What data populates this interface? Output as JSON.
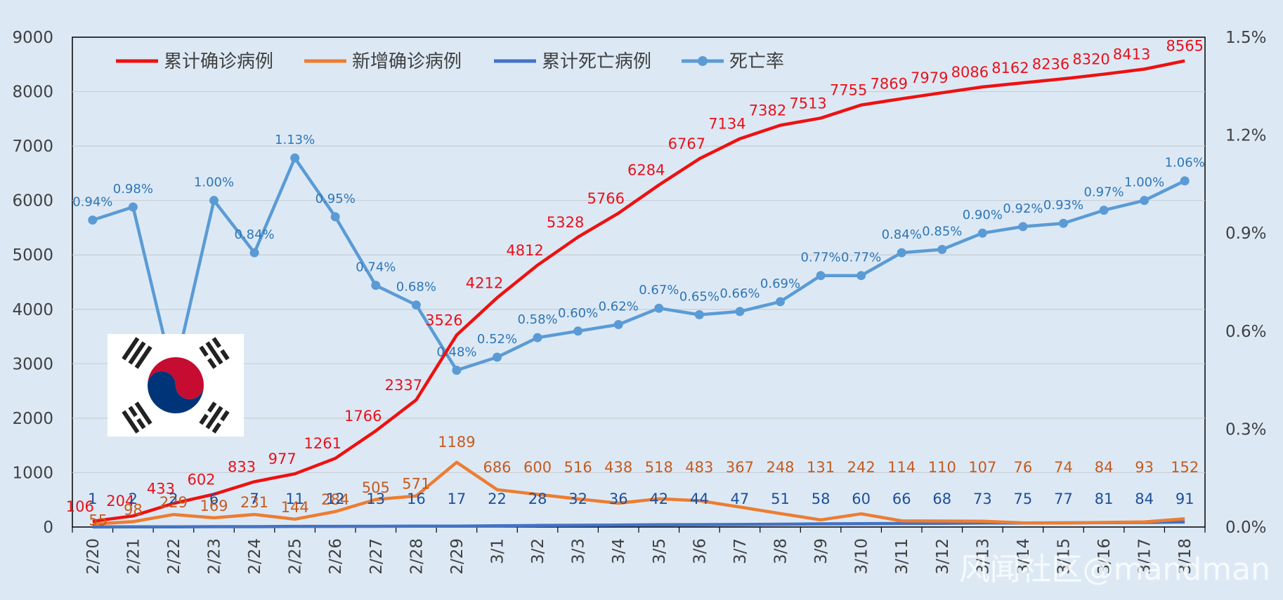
{
  "chart_data": {
    "type": "line",
    "categories": [
      "2/20",
      "2/21",
      "2/22",
      "2/23",
      "2/24",
      "2/25",
      "2/26",
      "2/27",
      "2/28",
      "2/29",
      "3/1",
      "3/2",
      "3/3",
      "3/4",
      "3/5",
      "3/6",
      "3/7",
      "3/8",
      "3/9",
      "3/10",
      "3/11",
      "3/12",
      "3/13",
      "3/14",
      "3/15",
      "3/16",
      "3/17",
      "3/18"
    ],
    "ylim": [
      0,
      9000
    ],
    "y_ticks": [
      "0",
      "1000",
      "2000",
      "3000",
      "4000",
      "5000",
      "6000",
      "7000",
      "8000",
      "9000"
    ],
    "y2lim": [
      0,
      1.5
    ],
    "y2_ticks": [
      "0.0%",
      "0.3%",
      "0.6%",
      "0.9%",
      "1.2%",
      "1.5%"
    ],
    "grid": true,
    "legend_position": "top-left",
    "series": [
      {
        "name": "累计确诊病例",
        "axis": "left",
        "color": "#ee1111",
        "values": [
          106,
          204,
          433,
          602,
          833,
          977,
          1261,
          1766,
          2337,
          3526,
          4212,
          4812,
          5328,
          5766,
          6284,
          6767,
          7134,
          7382,
          7513,
          7755,
          7869,
          7979,
          8086,
          8162,
          8236,
          8320,
          8413,
          8565
        ],
        "labels": [
          "106",
          "204",
          "433",
          "602",
          "833",
          "977",
          "1261",
          "1766",
          "2337",
          "3526",
          "4212",
          "4812",
          "5328",
          "5766",
          "6284",
          "6767",
          "7134",
          "7382",
          "7513",
          "7755",
          "7869",
          "7979",
          "8086",
          "8162",
          "8236",
          "8320",
          "8413",
          "8565"
        ]
      },
      {
        "name": "新增确诊病例",
        "axis": "left",
        "color": "#ed7d31",
        "values": [
          55,
          98,
          229,
          169,
          231,
          144,
          284,
          505,
          571,
          1189,
          686,
          600,
          516,
          438,
          518,
          483,
          367,
          248,
          131,
          242,
          114,
          110,
          107,
          76,
          74,
          84,
          93,
          152
        ],
        "labels": [
          "55",
          "98",
          "229",
          "169",
          "231",
          "144",
          "284",
          "505",
          "571",
          "1189",
          "686",
          "600",
          "516",
          "438",
          "518",
          "483",
          "367",
          "248",
          "131",
          "242",
          "114",
          "110",
          "107",
          "76",
          "74",
          "84",
          "93",
          "152"
        ]
      },
      {
        "name": "累计死亡病例",
        "axis": "left",
        "color": "#4472c4",
        "values": [
          1,
          2,
          2,
          6,
          7,
          11,
          12,
          13,
          16,
          17,
          22,
          28,
          32,
          36,
          42,
          44,
          47,
          51,
          58,
          60,
          66,
          68,
          73,
          75,
          77,
          81,
          84,
          91
        ],
        "labels": [
          "1",
          "2",
          "2",
          "6",
          "7",
          "11",
          "12",
          "13",
          "16",
          "17",
          "22",
          "28",
          "32",
          "36",
          "42",
          "44",
          "47",
          "51",
          "58",
          "60",
          "66",
          "68",
          "73",
          "75",
          "77",
          "81",
          "84",
          "91"
        ]
      },
      {
        "name": "死亡率",
        "axis": "right",
        "color": "#5b9bd5",
        "values": [
          0.94,
          0.98,
          0.46,
          1.0,
          0.84,
          1.13,
          0.95,
          0.74,
          0.68,
          0.48,
          0.52,
          0.58,
          0.6,
          0.62,
          0.67,
          0.65,
          0.66,
          0.69,
          0.77,
          0.77,
          0.84,
          0.85,
          0.9,
          0.92,
          0.93,
          0.97,
          1.0,
          1.06
        ],
        "labels": [
          "0.94%",
          "0.98%",
          "",
          "1.00%",
          "0.84%",
          "1.13%",
          "0.95%",
          "0.74%",
          "0.68%",
          "0.48%",
          "0.52%",
          "0.58%",
          "0.60%",
          "0.62%",
          "0.67%",
          "0.65%",
          "0.66%",
          "0.69%",
          "0.77%",
          "0.77%",
          "0.84%",
          "0.85%",
          "0.90%",
          "0.92%",
          "0.93%",
          "0.97%",
          "1.00%",
          "1.06%"
        ]
      }
    ]
  },
  "flag_icon": "south-korea-flag",
  "watermark": "风闻社区@mandman"
}
